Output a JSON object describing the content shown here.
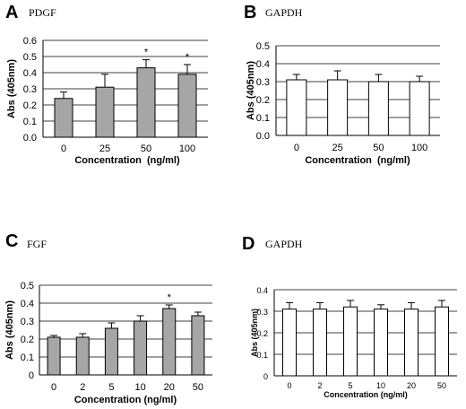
{
  "chart_data": [
    {
      "type": "bar",
      "panel_letter": "A",
      "title": "PDGF",
      "xlabel": "Concentration  (ng/ml)",
      "ylabel": "Abs (405nm)",
      "categories": [
        "0",
        "25",
        "50",
        "100"
      ],
      "values": [
        0.24,
        0.31,
        0.43,
        0.39
      ],
      "errors": [
        0.04,
        0.08,
        0.05,
        0.06
      ],
      "significant": [
        false,
        false,
        true,
        true
      ],
      "significance_marker": "*",
      "ylim": [
        0,
        0.6
      ],
      "yticks": [
        "0.6",
        "0.5",
        "0.4",
        "0.3",
        "0.2",
        "0.1",
        "0.0"
      ],
      "bar_color": "#a6a6a6",
      "grid": true
    },
    {
      "type": "bar",
      "panel_letter": "B",
      "title": "GAPDH",
      "xlabel": "Concentration  (ng/ml)",
      "ylabel": "Abs (405nm)",
      "categories": [
        "0",
        "25",
        "50",
        "100"
      ],
      "values": [
        0.31,
        0.31,
        0.3,
        0.3
      ],
      "errors": [
        0.03,
        0.05,
        0.04,
        0.03
      ],
      "significant": [
        false,
        false,
        false,
        false
      ],
      "significance_marker": "*",
      "ylim": [
        0,
        0.5
      ],
      "yticks": [
        "0.5",
        "0.4",
        "0.3",
        "0.2",
        "0.1",
        "0.0"
      ],
      "bar_color": "#ffffff",
      "grid": true
    },
    {
      "type": "bar",
      "panel_letter": "C",
      "title": "FGF",
      "xlabel": "Concentration (ng/ml)",
      "ylabel": "Abs (405nm)",
      "categories": [
        "0",
        "2",
        "5",
        "10",
        "20",
        "50"
      ],
      "values": [
        0.21,
        0.21,
        0.26,
        0.3,
        0.37,
        0.33
      ],
      "errors": [
        0.01,
        0.02,
        0.03,
        0.03,
        0.02,
        0.02
      ],
      "significant": [
        false,
        false,
        false,
        false,
        true,
        false
      ],
      "significance_marker": "*",
      "ylim": [
        0,
        0.5
      ],
      "yticks": [
        "0.5",
        "0.4",
        "0.3",
        "0.2",
        "0.1",
        "0"
      ],
      "bar_color": "#a6a6a6",
      "grid": true
    },
    {
      "type": "bar",
      "panel_letter": "D",
      "title": "GAPDH",
      "xlabel": "Concentration (ng/ml)",
      "ylabel": "Abs (405nm)",
      "categories": [
        "0",
        "2",
        "5",
        "10",
        "20",
        "50"
      ],
      "values": [
        0.31,
        0.31,
        0.32,
        0.31,
        0.31,
        0.32
      ],
      "errors": [
        0.03,
        0.03,
        0.03,
        0.02,
        0.03,
        0.03
      ],
      "significant": [
        false,
        false,
        false,
        false,
        false,
        false
      ],
      "significance_marker": "*",
      "ylim": [
        0,
        0.4
      ],
      "yticks": [
        "0.4",
        "0.3",
        "0.2",
        "0.1",
        "0"
      ],
      "bar_color": "#ffffff",
      "grid": true
    }
  ]
}
